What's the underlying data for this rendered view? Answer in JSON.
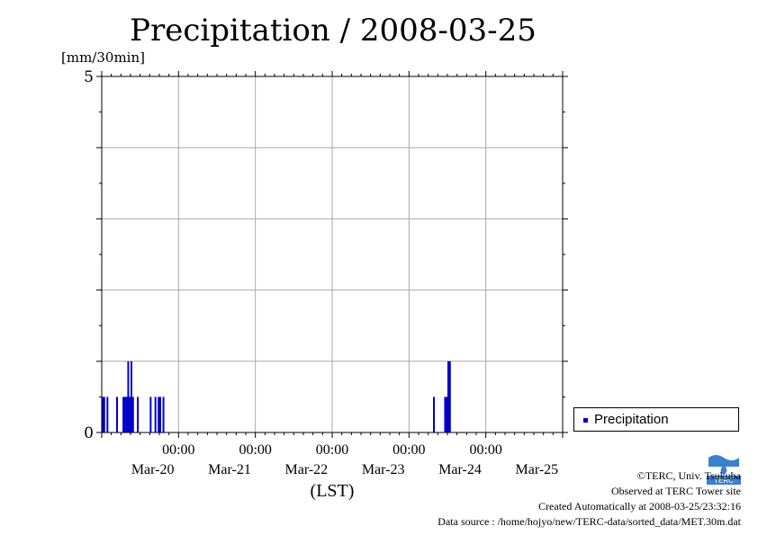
{
  "chart_data": {
    "type": "bar",
    "title": "Precipitation / 2008-03-25",
    "ylabel": "[mm/30min]",
    "xlabel": "(LST)",
    "ylim": [
      0,
      5
    ],
    "y_ticks_labeled": [
      "0",
      "5"
    ],
    "y_gridlines": [
      1,
      2,
      3,
      4
    ],
    "x_tick_time_label": "00:00",
    "x_date_labels": [
      "Mar-20",
      "Mar-21",
      "Mar-22",
      "Mar-23",
      "Mar-24",
      "Mar-25"
    ],
    "x_range_hours": [
      0,
      144
    ],
    "grid": true,
    "legend_position": "bottom-right",
    "series": [
      {
        "name": "Precipitation",
        "color": "#0000cc",
        "points": [
          {
            "hour": 0.0,
            "value": 0.5
          },
          {
            "hour": 0.5,
            "value": 0.5
          },
          {
            "hour": 1.5,
            "value": 0.5
          },
          {
            "hour": 4.5,
            "value": 0.5
          },
          {
            "hour": 6.5,
            "value": 0.5
          },
          {
            "hour": 7.0,
            "value": 0.5
          },
          {
            "hour": 7.5,
            "value": 0.5
          },
          {
            "hour": 8.0,
            "value": 1.0
          },
          {
            "hour": 8.5,
            "value": 0.5
          },
          {
            "hour": 9.0,
            "value": 1.0
          },
          {
            "hour": 9.5,
            "value": 0.5
          },
          {
            "hour": 11.0,
            "value": 0.5
          },
          {
            "hour": 15.0,
            "value": 0.5
          },
          {
            "hour": 16.5,
            "value": 0.5
          },
          {
            "hour": 17.5,
            "value": 0.5
          },
          {
            "hour": 18.0,
            "value": 0.5
          },
          {
            "hour": 19.0,
            "value": 0.5
          },
          {
            "hour": 103.5,
            "value": 0.5
          },
          {
            "hour": 107.0,
            "value": 0.5
          },
          {
            "hour": 107.5,
            "value": 0.5
          },
          {
            "hour": 108.0,
            "value": 1.0
          },
          {
            "hour": 108.5,
            "value": 1.0
          }
        ]
      }
    ]
  },
  "legend": {
    "label": "Precipitation",
    "color": "#0000cc"
  },
  "footer": {
    "copyright": "©TERC, Univ. Tsukuba",
    "observed": "Observed at TERC Tower site",
    "created": "Created Automatically at 2008-03-25/23:32:16",
    "source": "Data source : /home/hojyo/new/TERC-data/sorted_data/MET.30m.dat"
  },
  "logo": {
    "text": "TERC",
    "color": "#3a7fd0"
  }
}
